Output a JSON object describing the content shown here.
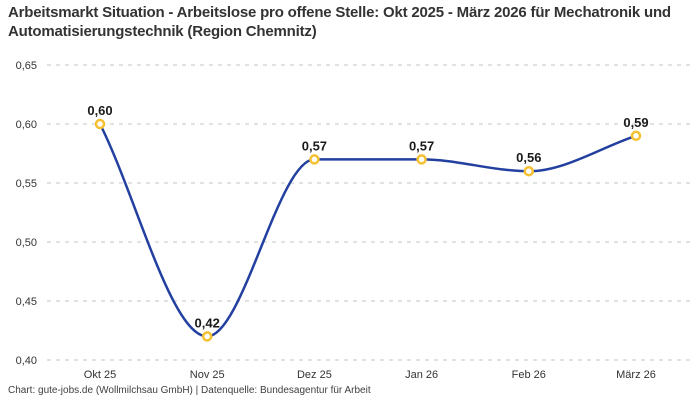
{
  "header": {
    "title": "Arbeitsmarkt Situation - Arbeitslose pro offene Stelle: Okt 2025 - März 2026 für Mechatronik und Automatisierungstechnik (Region Chemnitz)"
  },
  "footer": {
    "attribution": "Chart: gute-jobs.de (Wollmilchsau GmbH) | Datenquelle: Bundesagentur für Arbeit"
  },
  "colors": {
    "line": "#2340a0",
    "marker_stroke": "#f5c132",
    "marker_fill": "#ffffff",
    "grid": "#c6c6c6",
    "tick_label": "#333333",
    "point_label": "#1a1a1a",
    "title": "#333333",
    "footer": "#3f3f3f"
  },
  "chart_data": {
    "type": "line",
    "title": "Arbeitsmarkt Situation - Arbeitslose pro offene Stelle: Okt 2025 - März 2026 für Mechatronik und Automatisierungstechnik (Region Chemnitz)",
    "categories": [
      "Okt 25",
      "Nov 25",
      "Dez 25",
      "Jan 26",
      "Feb 26",
      "März 26"
    ],
    "values": [
      0.6,
      0.42,
      0.57,
      0.57,
      0.56,
      0.59
    ],
    "point_labels": [
      "0,60",
      "0,42",
      "0,57",
      "0,57",
      "0,56",
      "0,59"
    ],
    "ytick_values": [
      0.4,
      0.45,
      0.5,
      0.55,
      0.6,
      0.65
    ],
    "ytick_labels": [
      "0,40",
      "0,45",
      "0,50",
      "0,55",
      "0,60",
      "0,65"
    ],
    "ylim": [
      0.4,
      0.65
    ],
    "xlabel": "",
    "ylabel": "",
    "legend": "none",
    "grid": "horizontal-dashed",
    "curve": "monotone",
    "markers": "open-circle"
  }
}
